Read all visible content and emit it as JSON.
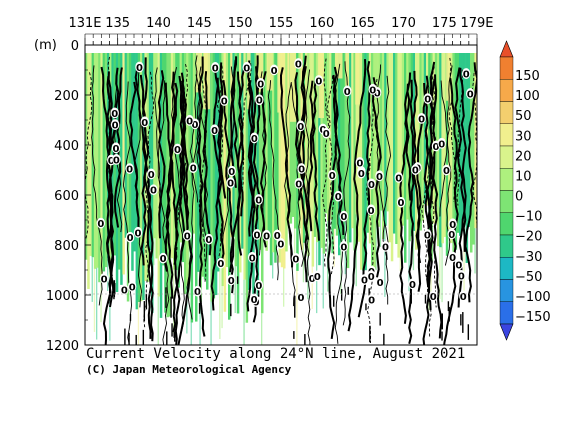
{
  "chart_data": {
    "type": "heatmap",
    "title": "Current Velocity along 24°N line, August 2021",
    "credit": "(C) Japan Meteorological Agency",
    "ylabel": "(m)",
    "x_ticks": [
      "131E",
      "135",
      "140",
      "145",
      "150",
      "155",
      "160",
      "165",
      "170",
      "175",
      "179E"
    ],
    "x_tick_values": [
      131,
      135,
      140,
      145,
      150,
      155,
      160,
      165,
      170,
      175,
      179
    ],
    "xlim": [
      131,
      179
    ],
    "y_ticks": [
      "0",
      "200",
      "400",
      "600",
      "800",
      "1000",
      "1200"
    ],
    "y_tick_values": [
      0,
      200,
      400,
      600,
      800,
      1000,
      1200
    ],
    "ylim": [
      0,
      1200
    ],
    "y_reversed": true,
    "contour_label": "0",
    "colorbar": {
      "labels": [
        "150",
        "100",
        "50",
        "30",
        "20",
        "10",
        "0",
        "−10",
        "−20",
        "−30",
        "−50",
        "−100",
        "−150"
      ],
      "colors": [
        "#e8502a",
        "#f08030",
        "#f6a94a",
        "#f3cf6e",
        "#f1ef8e",
        "#d9f38c",
        "#aef07e",
        "#7ee474",
        "#4fd66e",
        "#2fc98a",
        "#1db8c4",
        "#2894e0",
        "#2a6fe8",
        "#3a45e0"
      ]
    }
  }
}
